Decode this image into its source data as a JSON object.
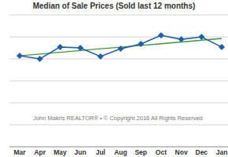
{
  "chart_data": {
    "type": "line",
    "title": "Median of Sale Prices (Sold last 12 months)",
    "annotation": "John Makris REALTOR® • © Copyright 2016 All Rights Reserved",
    "categories": [
      "Mar",
      "Apr",
      "May",
      "Jun",
      "Jul",
      "Aug",
      "Sep",
      "Oct",
      "Nov",
      "Dec",
      "Jan"
    ],
    "series": [
      {
        "color": "#1f5fa8",
        "marker": "diamond",
        "line_style": "solid",
        "values": [
          414,
          400,
          454,
          450,
          411,
          446,
          468,
          507,
          489,
          500,
          454
        ]
      },
      {
        "color": "#3a9a3a",
        "marker": "none",
        "line_style": "solid",
        "values": [
          414,
          422,
          430,
          438,
          446,
          453,
          461,
          469,
          477,
          485,
          493
        ]
      }
    ],
    "ylim": [
      0,
      600
    ],
    "yticks": [
      0,
      100,
      200,
      300,
      400,
      500,
      600
    ],
    "grid": true,
    "tick_labels": "x"
  }
}
